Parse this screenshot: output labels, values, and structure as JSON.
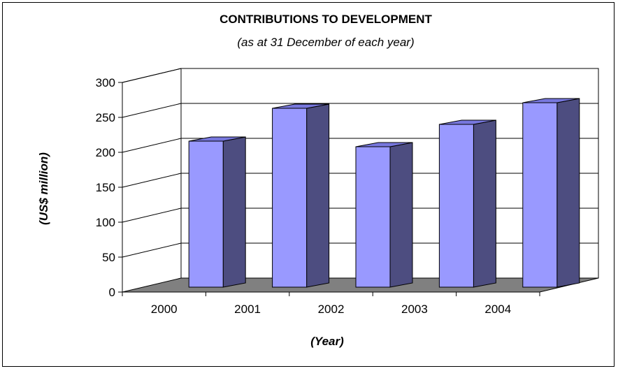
{
  "chart_data": {
    "type": "bar",
    "title": "CONTRIBUTIONS TO DEVELOPMENT",
    "subtitle": "(as at 31 December of each year)",
    "xlabel": "(Year)",
    "ylabel": "(US$ million)",
    "categories": [
      "2000",
      "2001",
      "2002",
      "2003",
      "2004"
    ],
    "values": [
      223,
      270,
      215,
      247,
      278
    ],
    "ylim": [
      0,
      300
    ],
    "yticks": [
      0,
      50,
      100,
      150,
      200,
      250,
      300
    ],
    "grid": true,
    "legend": "none",
    "colors": {
      "bar_front": "#9999ff",
      "bar_side": "#4d4d80",
      "bar_top": "#7777dd",
      "floor": "#808080"
    }
  }
}
